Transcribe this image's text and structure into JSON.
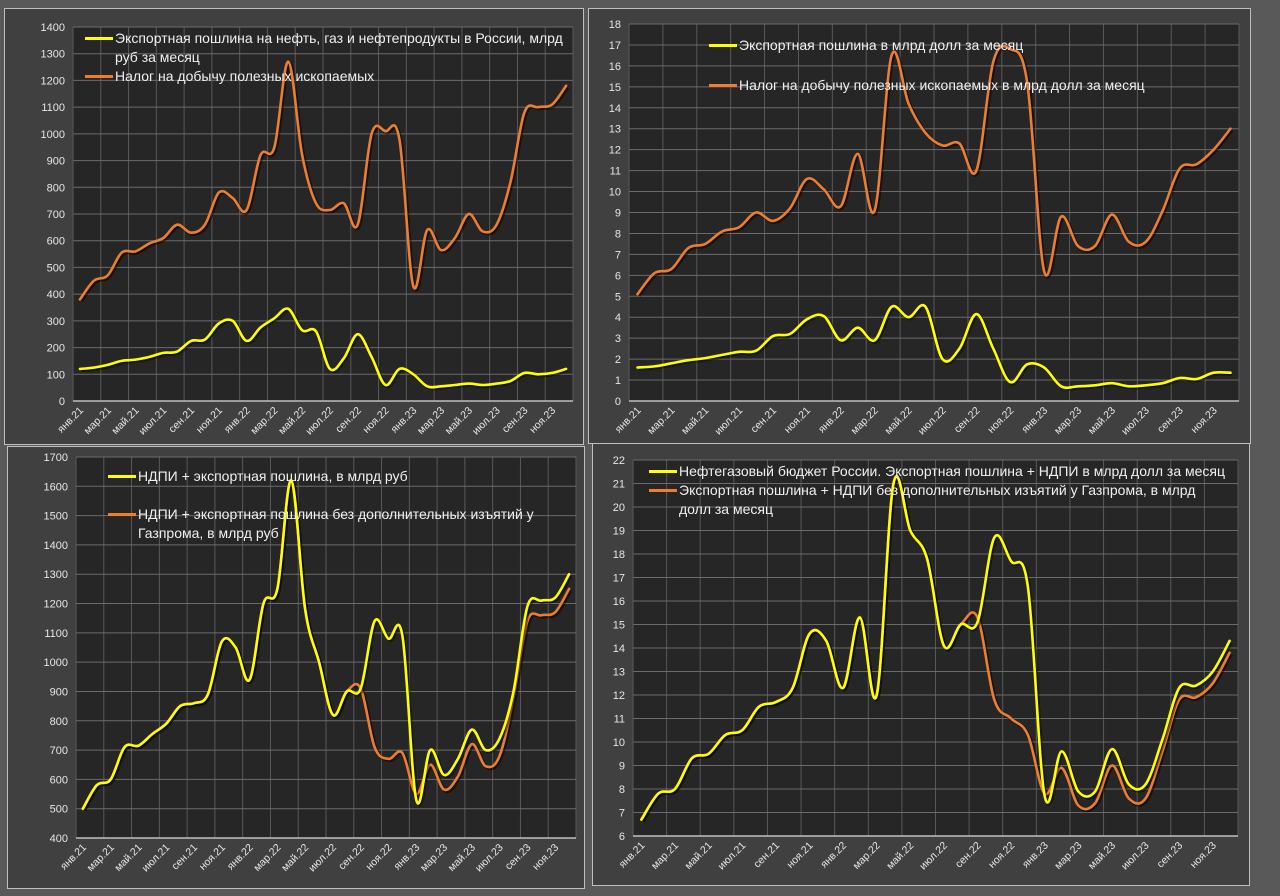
{
  "chart_data": [
    {
      "id": "p1",
      "type": "line",
      "title": "",
      "xlabel": "",
      "ylabel": "",
      "x": [
        "янв.21",
        "фев.21",
        "мар.21",
        "апр.21",
        "май.21",
        "июн.21",
        "июл.21",
        "авг.21",
        "сен.21",
        "окт.21",
        "ноя.21",
        "дек.21",
        "янв.22",
        "фев.22",
        "мар.22",
        "апр.22",
        "май.22",
        "июн.22",
        "июл.22",
        "авг.22",
        "сен.22",
        "окт.22",
        "ноя.22",
        "дек.22",
        "янв.23",
        "фев.23",
        "мар.23",
        "апр.23",
        "май.23",
        "июн.23",
        "июл.23",
        "авг.23",
        "сен.23",
        "окт.23",
        "ноя.23",
        "дек.23"
      ],
      "tick_labels": [
        "янв.21",
        "мар.21",
        "май.21",
        "июл.21",
        "сен.21",
        "ноя.21",
        "янв.22",
        "мар.22",
        "май.22",
        "июл.22",
        "сен.22",
        "ноя.22",
        "янв.23",
        "мар.23",
        "май.23",
        "июл.23",
        "сен.23",
        "ноя.23"
      ],
      "ylim": [
        0,
        1400
      ],
      "yticks": [
        0,
        100,
        200,
        300,
        400,
        500,
        600,
        700,
        800,
        900,
        1000,
        1100,
        1200,
        1300,
        1400
      ],
      "grid": true,
      "legend_position": "top-left",
      "series": [
        {
          "name": "Экспортная пошлина на нефть, газ и нефтепродукты в России, млрд руб за месяц",
          "color": "#ffff00",
          "values": [
            120,
            125,
            135,
            150,
            155,
            165,
            180,
            185,
            225,
            230,
            290,
            300,
            225,
            275,
            310,
            345,
            265,
            260,
            120,
            160,
            250,
            165,
            60,
            120,
            100,
            55,
            55,
            60,
            65,
            60,
            65,
            75,
            105,
            100,
            105,
            120
          ]
        },
        {
          "name": "Налог на добычу полезных ископаемых",
          "color": "#ed7d31",
          "values": [
            380,
            450,
            470,
            555,
            560,
            590,
            610,
            660,
            630,
            660,
            780,
            760,
            715,
            920,
            950,
            1270,
            920,
            740,
            715,
            740,
            660,
            1000,
            1010,
            980,
            430,
            640,
            565,
            610,
            700,
            635,
            660,
            820,
            1080,
            1100,
            1110,
            1180
          ]
        }
      ]
    },
    {
      "id": "p2",
      "type": "line",
      "title": "",
      "xlabel": "",
      "ylabel": "",
      "x": [
        "янв.21",
        "фев.21",
        "мар.21",
        "апр.21",
        "май.21",
        "июн.21",
        "июл.21",
        "авг.21",
        "сен.21",
        "окт.21",
        "ноя.21",
        "дек.21",
        "янв.22",
        "фев.22",
        "мар.22",
        "апр.22",
        "май.22",
        "июн.22",
        "июл.22",
        "авг.22",
        "сен.22",
        "окт.22",
        "ноя.22",
        "дек.22",
        "янв.23",
        "фев.23",
        "мар.23",
        "апр.23",
        "май.23",
        "июн.23",
        "июл.23",
        "авг.23",
        "сен.23",
        "окт.23",
        "ноя.23",
        "дек.23"
      ],
      "tick_labels": [
        "янв.21",
        "мар.21",
        "май.21",
        "июл.21",
        "сен.21",
        "ноя.21",
        "янв.22",
        "мар.22",
        "май.22",
        "июл.22",
        "сен.22",
        "ноя.22",
        "янв.23",
        "мар.23",
        "май.23",
        "июл.23",
        "сен.23",
        "ноя.23"
      ],
      "ylim": [
        0,
        18
      ],
      "yticks": [
        0,
        1,
        2,
        3,
        4,
        5,
        6,
        7,
        8,
        9,
        10,
        11,
        12,
        13,
        14,
        15,
        16,
        17,
        18
      ],
      "grid": true,
      "legend_position": "top-center",
      "series": [
        {
          "name": "Экспортная пошлина в млрд долл за месяц",
          "color": "#ffff00",
          "values": [
            1.6,
            1.65,
            1.8,
            1.95,
            2.05,
            2.2,
            2.35,
            2.4,
            3.1,
            3.2,
            3.9,
            4.05,
            2.9,
            3.5,
            2.9,
            4.5,
            4.0,
            4.5,
            2.0,
            2.5,
            4.15,
            2.5,
            0.9,
            1.75,
            1.6,
            0.7,
            0.7,
            0.75,
            0.85,
            0.7,
            0.75,
            0.85,
            1.1,
            1.05,
            1.35,
            1.35
          ]
        },
        {
          "name": "Налог на добычу полезных ископаемых в млрд долл за месяц",
          "color": "#ed7d31",
          "values": [
            5.1,
            6.1,
            6.3,
            7.3,
            7.5,
            8.1,
            8.3,
            9.0,
            8.6,
            9.2,
            10.6,
            10.1,
            9.3,
            11.8,
            9.1,
            16.5,
            14.2,
            12.8,
            12.2,
            12.3,
            11.0,
            16.2,
            16.8,
            15.2,
            6.2,
            8.8,
            7.4,
            7.4,
            8.9,
            7.6,
            7.6,
            9.1,
            11.1,
            11.3,
            12.0,
            13.0
          ]
        }
      ]
    },
    {
      "id": "p3",
      "type": "line",
      "title": "",
      "xlabel": "",
      "ylabel": "",
      "x": [
        "янв.21",
        "фев.21",
        "мар.21",
        "апр.21",
        "май.21",
        "июн.21",
        "июл.21",
        "авг.21",
        "сен.21",
        "окт.21",
        "ноя.21",
        "дек.21",
        "янв.22",
        "фев.22",
        "мар.22",
        "апр.22",
        "май.22",
        "июн.22",
        "июл.22",
        "авг.22",
        "сен.22",
        "окт.22",
        "ноя.22",
        "дек.22",
        "янв.23",
        "фев.23",
        "мар.23",
        "апр.23",
        "май.23",
        "июн.23",
        "июл.23",
        "авг.23",
        "сен.23",
        "окт.23",
        "ноя.23",
        "дек.23"
      ],
      "tick_labels": [
        "янв.21",
        "мар.21",
        "май.21",
        "июл.21",
        "сен.21",
        "ноя.21",
        "янв.22",
        "мар.22",
        "май.22",
        "июл.22",
        "сен.22",
        "ноя.22",
        "янв.23",
        "мар.23",
        "май.23",
        "июл.23",
        "сен.23",
        "ноя.23"
      ],
      "ylim": [
        400,
        1700
      ],
      "yticks": [
        400,
        500,
        600,
        700,
        800,
        900,
        1000,
        1100,
        1200,
        1300,
        1400,
        1500,
        1600,
        1700
      ],
      "grid": true,
      "legend_position": "top-left",
      "series": [
        {
          "name": "НДПИ + экспортная пошлина, в млрд руб",
          "color": "#ffff00",
          "values": [
            500,
            580,
            600,
            710,
            715,
            755,
            790,
            850,
            860,
            890,
            1070,
            1050,
            940,
            1200,
            1250,
            1620,
            1180,
            1000,
            820,
            900,
            910,
            1140,
            1080,
            1090,
            530,
            700,
            615,
            670,
            770,
            700,
            740,
            900,
            1190,
            1210,
            1220,
            1300
          ]
        },
        {
          "name": "НДПИ + экспортная пошлина без дополнительных изъятий у Газпрома, в млрд руб",
          "color": "#ed7d31",
          "values": [
            500,
            580,
            600,
            710,
            715,
            755,
            790,
            850,
            860,
            890,
            1070,
            1050,
            940,
            1200,
            1250,
            1620,
            1180,
            1000,
            820,
            900,
            910,
            710,
            670,
            690,
            550,
            650,
            565,
            610,
            720,
            645,
            680,
            880,
            1140,
            1160,
            1170,
            1250
          ]
        }
      ]
    },
    {
      "id": "p4",
      "type": "line",
      "title": "",
      "xlabel": "",
      "ylabel": "",
      "x": [
        "янв.21",
        "фев.21",
        "мар.21",
        "апр.21",
        "май.21",
        "июн.21",
        "июл.21",
        "авг.21",
        "сен.21",
        "окт.21",
        "ноя.21",
        "дек.21",
        "янв.22",
        "фев.22",
        "мар.22",
        "апр.22",
        "май.22",
        "июн.22",
        "июл.22",
        "авг.22",
        "сен.22",
        "окт.22",
        "ноя.22",
        "дек.22",
        "янв.23",
        "фев.23",
        "мар.23",
        "апр.23",
        "май.23",
        "июн.23",
        "июл.23",
        "авг.23",
        "сен.23",
        "окт.23",
        "ноя.23",
        "дек.23"
      ],
      "tick_labels": [
        "янв.21",
        "мар.21",
        "май.21",
        "июл.21",
        "сен.21",
        "ноя.21",
        "янв.22",
        "мар.22",
        "май.22",
        "июл.22",
        "сен.22",
        "ноя.22",
        "янв.23",
        "мар.23",
        "май.23",
        "июл.23",
        "сен.23",
        "ноя.23"
      ],
      "ylim": [
        6,
        22
      ],
      "yticks": [
        6,
        7,
        8,
        9,
        10,
        11,
        12,
        13,
        14,
        15,
        16,
        17,
        18,
        19,
        20,
        21,
        22
      ],
      "grid": true,
      "legend_position": "top-left",
      "series": [
        {
          "name": "Нефтегазовый бюджет России. Экспортная пошлина + НДПИ в млрд долл за месяц",
          "color": "#ffff00",
          "values": [
            6.7,
            7.8,
            8.0,
            9.3,
            9.5,
            10.3,
            10.5,
            11.5,
            11.7,
            12.3,
            14.6,
            14.3,
            12.3,
            15.3,
            12.0,
            21.0,
            19.0,
            17.8,
            14.1,
            15.0,
            15.1,
            18.7,
            17.7,
            16.6,
            7.7,
            9.6,
            7.9,
            7.9,
            9.7,
            8.2,
            8.2,
            10.1,
            12.3,
            12.4,
            13.0,
            14.3
          ]
        },
        {
          "name": "Экспортная пошлина + НДПИ без дополнительных изъятий у Газпрома, в млрд долл за месяц",
          "color": "#ed7d31",
          "values": [
            6.7,
            7.8,
            8.0,
            9.3,
            9.5,
            10.3,
            10.5,
            11.5,
            11.7,
            12.3,
            14.6,
            14.3,
            12.3,
            15.3,
            12.0,
            21.0,
            19.0,
            17.8,
            14.1,
            15.0,
            15.3,
            11.8,
            11.0,
            10.3,
            7.8,
            8.9,
            7.3,
            7.4,
            9.0,
            7.6,
            7.6,
            9.6,
            11.8,
            11.9,
            12.5,
            13.8
          ]
        }
      ]
    }
  ]
}
